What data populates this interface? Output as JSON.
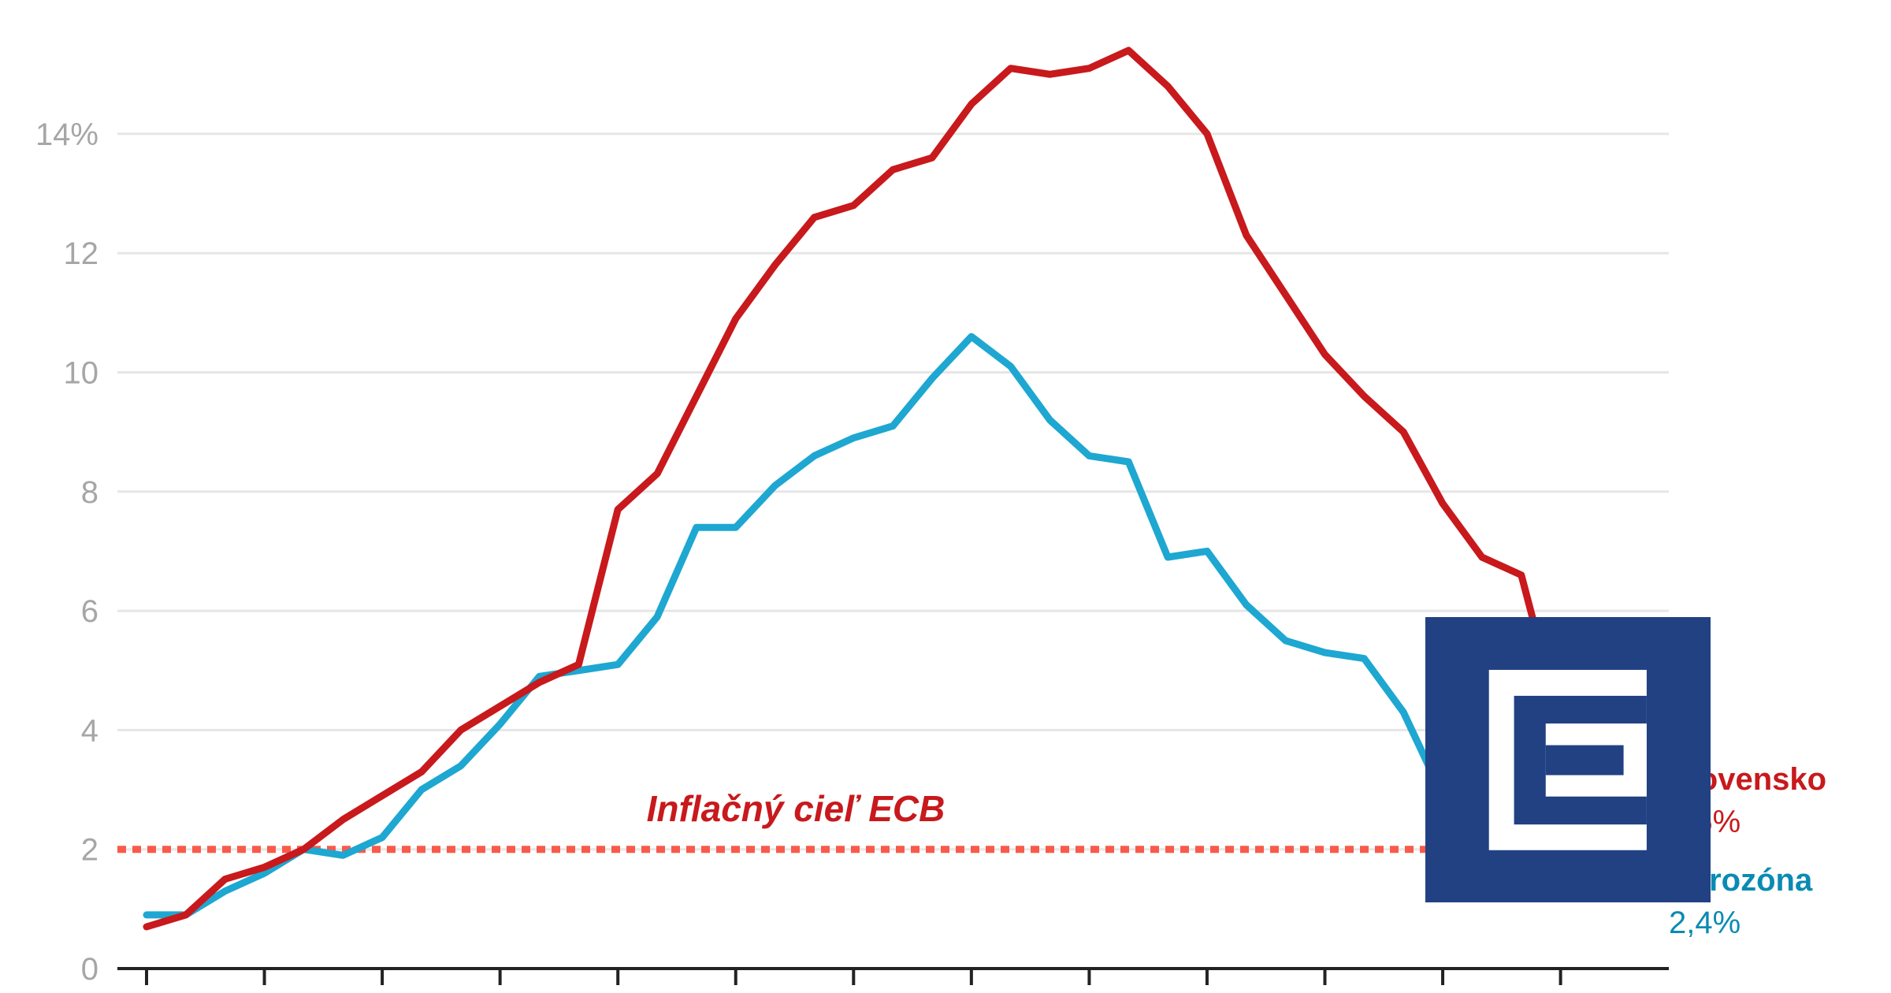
{
  "chart_data": {
    "type": "line",
    "title": "",
    "xlabel": "",
    "ylabel": "",
    "ylim": [
      0,
      15.5
    ],
    "yticks": [
      0,
      2,
      4,
      6,
      8,
      10,
      12,
      14
    ],
    "ytick_labels": [
      "0",
      "2",
      "4",
      "6",
      "8",
      "10",
      "12",
      "14%"
    ],
    "grid": true,
    "x_points": 39,
    "x_tick_every": 3,
    "series": [
      {
        "name": "Slovensko",
        "end_label": "2,5%",
        "color": "#c8191c",
        "values": [
          0.7,
          0.9,
          1.5,
          1.7,
          2.0,
          2.5,
          2.9,
          3.3,
          4.0,
          4.4,
          4.8,
          5.1,
          7.7,
          8.3,
          9.6,
          10.9,
          11.8,
          12.6,
          12.8,
          13.4,
          13.6,
          14.5,
          15.1,
          15.0,
          15.1,
          15.4,
          14.8,
          14.0,
          12.3,
          11.3,
          10.3,
          9.6,
          9.0,
          7.8,
          6.9,
          6.6,
          4.1,
          3.5,
          2.5
        ]
      },
      {
        "name": "Eurozóna",
        "end_label": "2,4%",
        "color": "#1ea7d1",
        "label_color": "#0a8bb3",
        "values": [
          0.9,
          0.9,
          1.3,
          1.6,
          2.0,
          1.9,
          2.2,
          3.0,
          3.4,
          4.1,
          4.9,
          5.0,
          5.1,
          5.9,
          7.4,
          7.4,
          8.1,
          8.6,
          8.9,
          9.1,
          9.9,
          10.6,
          10.1,
          9.2,
          8.6,
          8.5,
          6.9,
          7.0,
          6.1,
          5.5,
          5.3,
          5.2,
          4.3,
          2.9,
          2.4,
          2.9,
          2.8,
          2.6,
          2.4
        ]
      }
    ],
    "reference_line": {
      "value": 2,
      "label": "Inflačný cieľ ECB",
      "color": "#f95a4a",
      "style": "dotted"
    }
  },
  "logo": {
    "name": "company-logo-e",
    "bg_color": "#214183",
    "fg_color": "#ffffff"
  }
}
